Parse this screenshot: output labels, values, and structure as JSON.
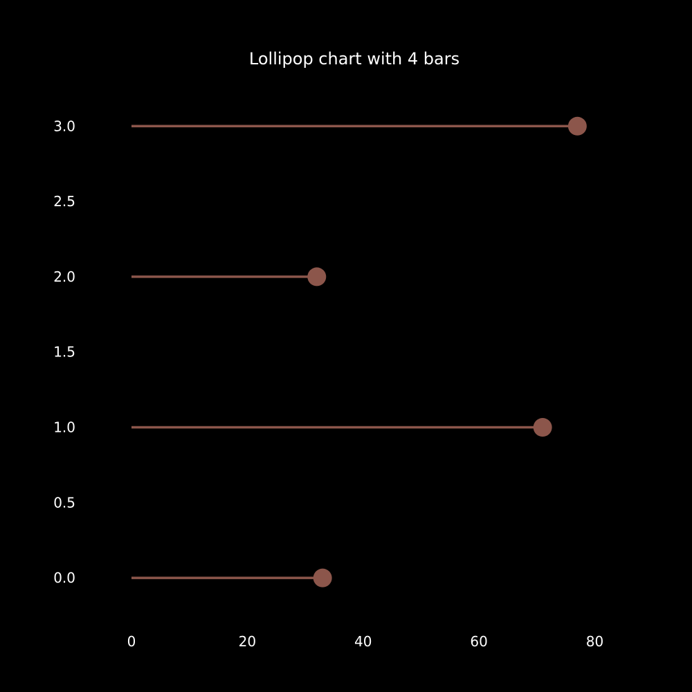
{
  "chart_data": {
    "type": "lollipop",
    "orientation": "horizontal",
    "title": "Lollipop chart with 4 bars",
    "xlabel": "",
    "ylabel": "",
    "y": [
      0,
      1,
      2,
      3
    ],
    "values": [
      33,
      71,
      32,
      77
    ],
    "xlim": [
      0,
      95
    ],
    "ylim": [
      -0.33,
      3.3
    ],
    "x_ticks": [
      "0",
      "20",
      "40",
      "60",
      "80"
    ],
    "y_ticks": [
      "0.0",
      "0.5",
      "1.0",
      "1.5",
      "2.0",
      "2.5",
      "3.0"
    ],
    "grid": false,
    "legend": "none",
    "colors": {
      "background": "#000000",
      "mark": "#8c564b",
      "text": "#ffffff"
    }
  }
}
